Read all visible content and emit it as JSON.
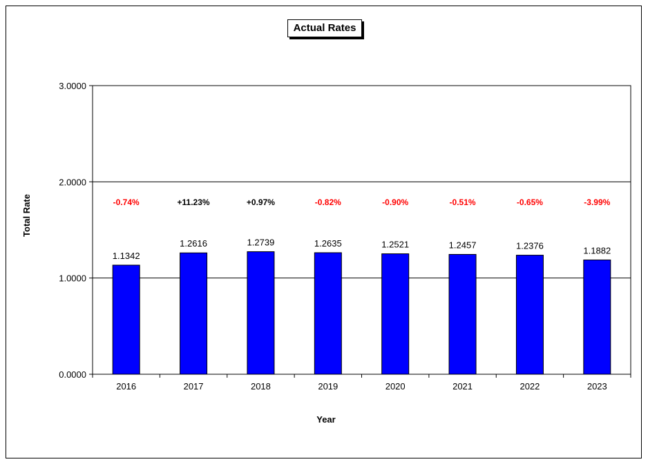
{
  "chart_data": {
    "type": "bar",
    "title": "Actual Rates",
    "xlabel": "Year",
    "ylabel": "Total Rate",
    "ylim": [
      0,
      3
    ],
    "yticks": [
      "0.0000",
      "1.0000",
      "2.0000",
      "3.0000"
    ],
    "categories": [
      "2016",
      "2017",
      "2018",
      "2019",
      "2020",
      "2021",
      "2022",
      "2023"
    ],
    "values": [
      1.1342,
      1.2616,
      1.2739,
      1.2635,
      1.2521,
      1.2457,
      1.2376,
      1.1882
    ],
    "value_labels": [
      "1.1342",
      "1.2616",
      "1.2739",
      "1.2635",
      "1.2521",
      "1.2457",
      "1.2376",
      "1.1882"
    ],
    "changes": [
      "-0.74%",
      "+11.23%",
      "+0.97%",
      "-0.82%",
      "-0.90%",
      "-0.51%",
      "-0.65%",
      "-3.99%"
    ],
    "change_colors": [
      "#ff0000",
      "#000000",
      "#000000",
      "#ff0000",
      "#ff0000",
      "#ff0000",
      "#ff0000",
      "#ff0000"
    ],
    "bar_color": "#0000ff",
    "grid": true,
    "legend": "none"
  }
}
